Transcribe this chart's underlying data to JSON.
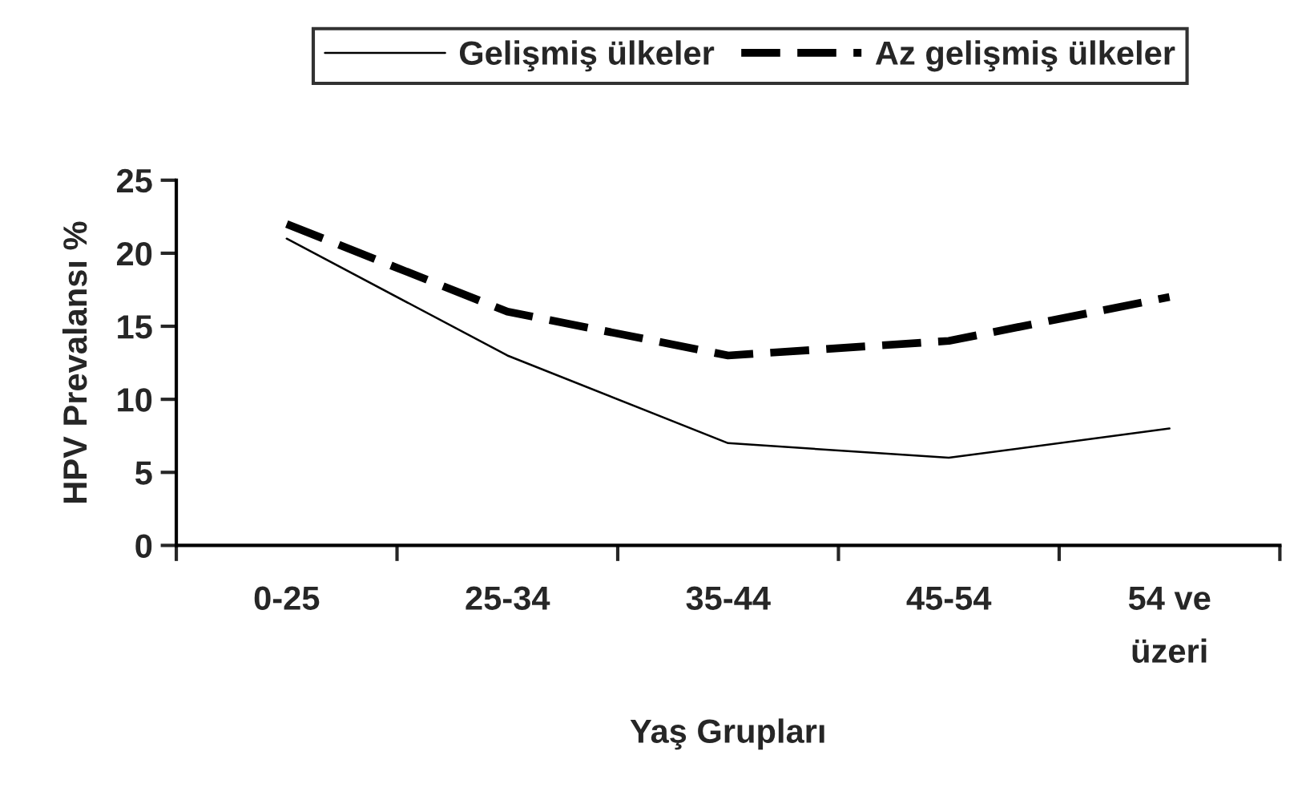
{
  "chart_data": {
    "type": "line",
    "xlabel": "Yaş Grupları",
    "ylabel": "HPV Prevalansı %",
    "categories": [
      "0-25",
      "25-34",
      "35-44",
      "45-54",
      "54 ve\nüzeri"
    ],
    "series": [
      {
        "name": "Gelişmiş ülkeler",
        "color": "#000000",
        "line_style": "solid",
        "values": [
          21,
          13,
          7,
          6,
          8
        ]
      },
      {
        "name": "Az gelişmiş ülkeler",
        "color": "#000000",
        "line_style": "dashed",
        "values": [
          22,
          16,
          13,
          14,
          17
        ]
      }
    ],
    "ylim": [
      0,
      25
    ],
    "yticks": [
      0,
      5,
      10,
      15,
      20,
      25
    ],
    "grid": false,
    "legend": "top",
    "marker": "none"
  }
}
